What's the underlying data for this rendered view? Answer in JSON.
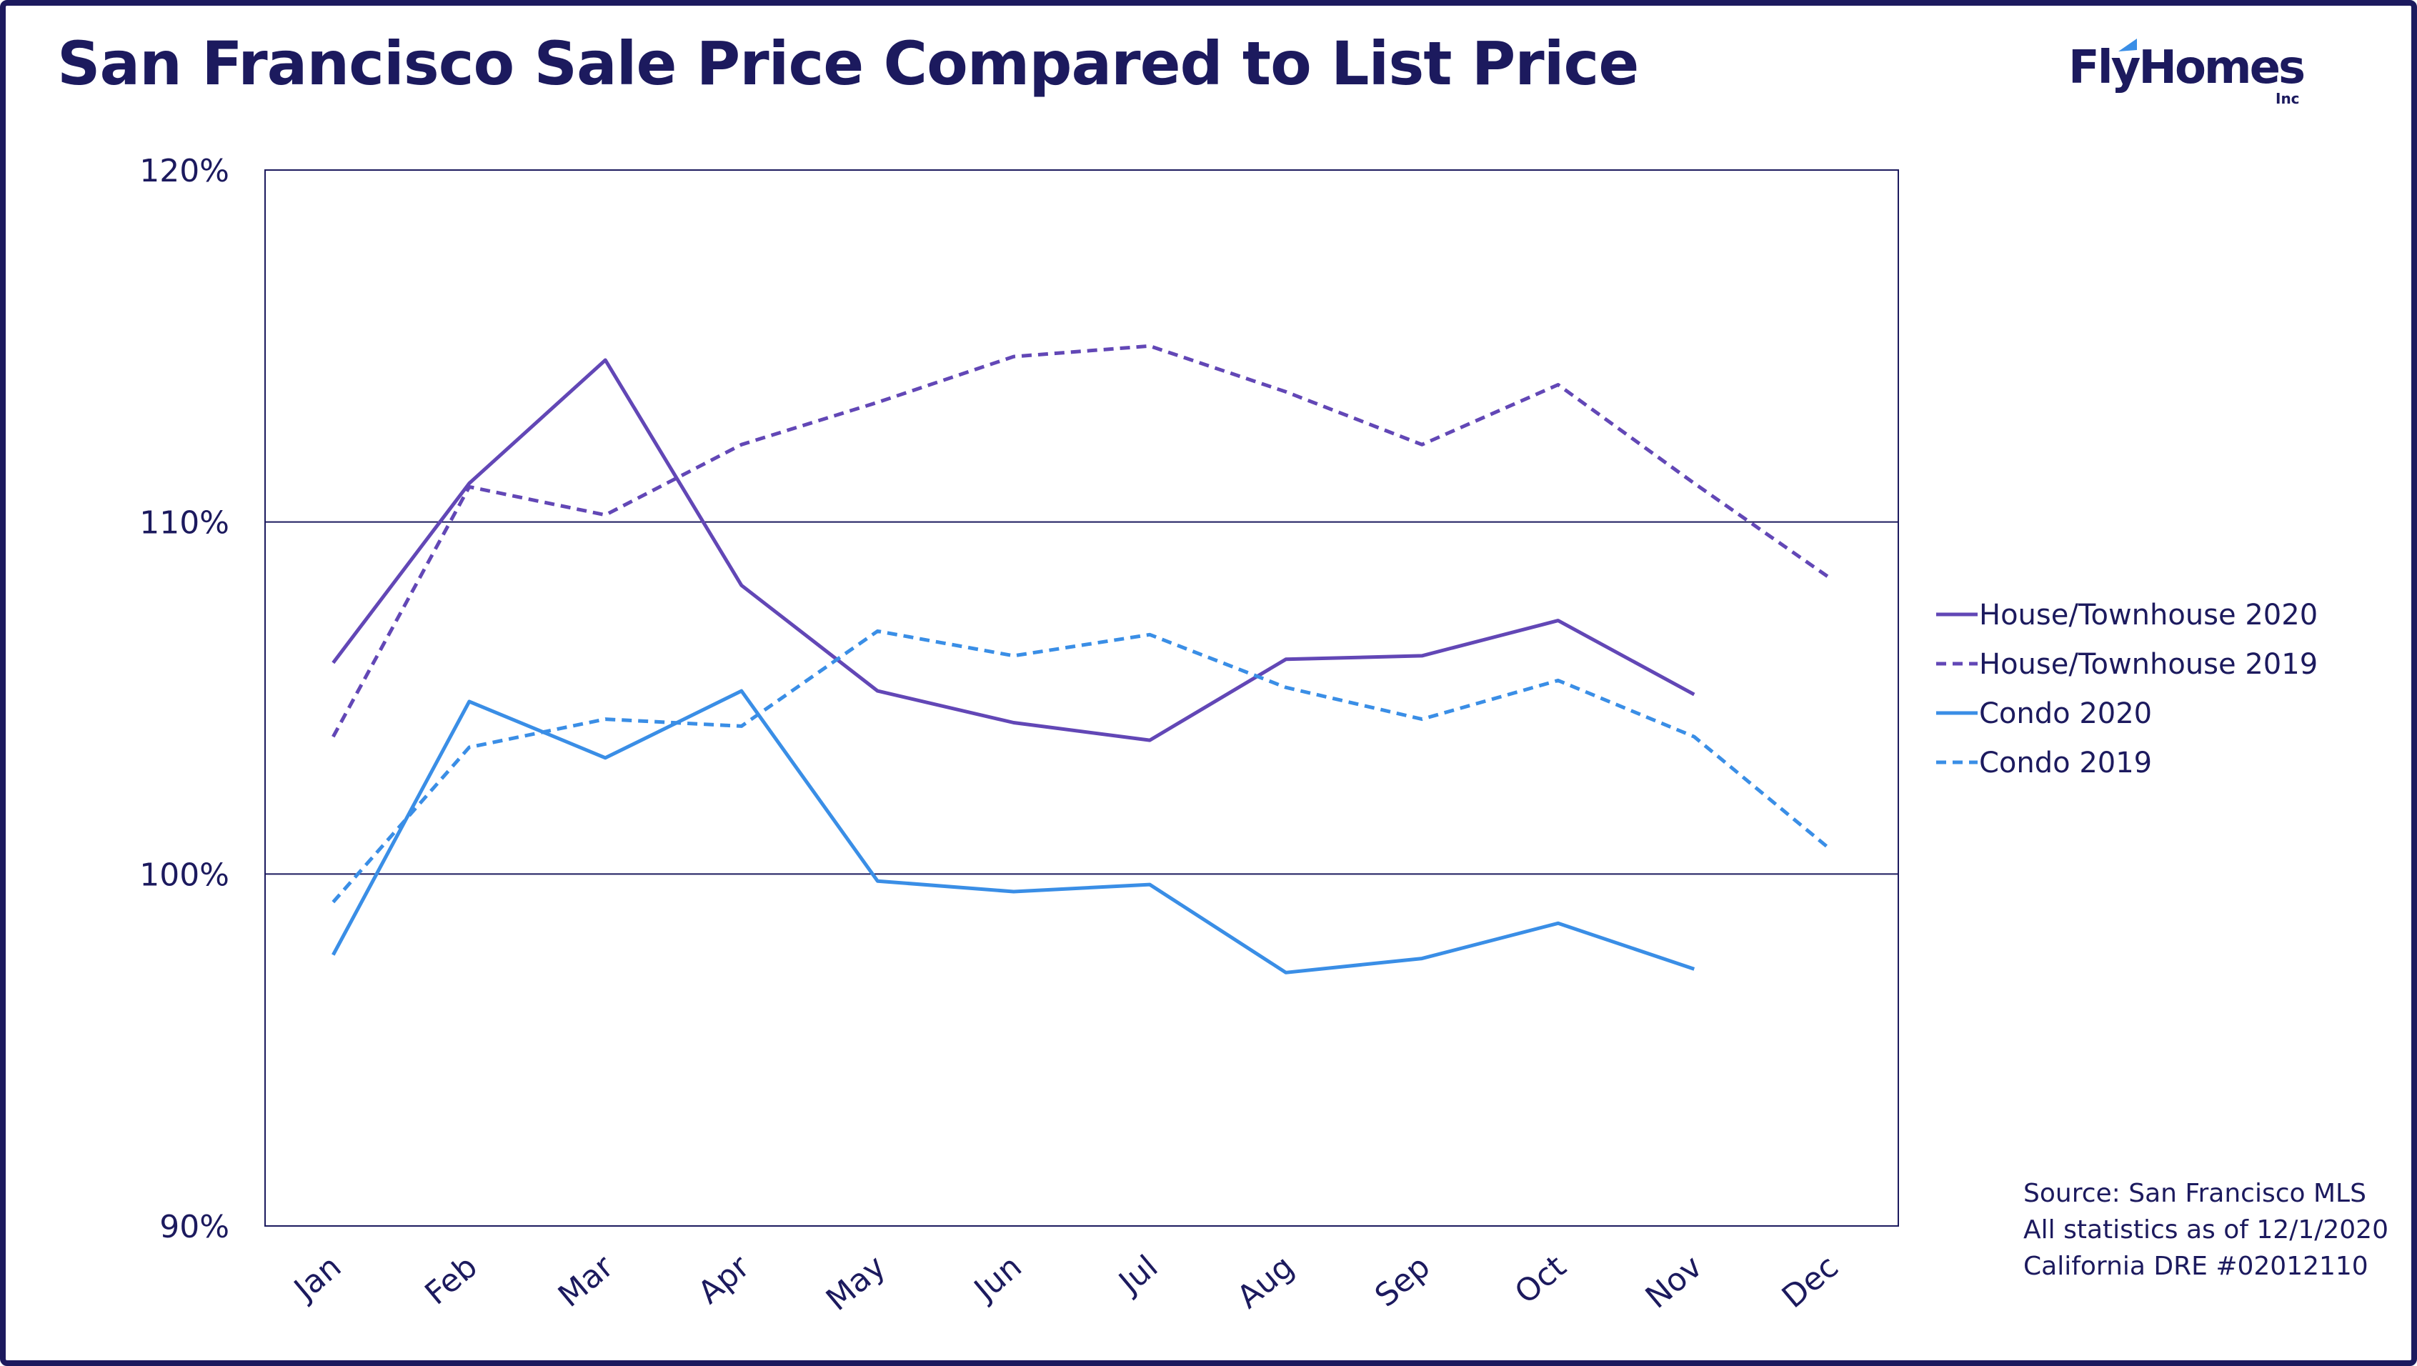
{
  "title": "San Francisco Sale Price Compared to List Price",
  "logo": {
    "name": "FlyHomes",
    "sub": "Inc"
  },
  "source_lines": [
    "Source: San Francisco MLS",
    "All statistics as of 12/1/2020",
    "California DRE #02012110"
  ],
  "colors": {
    "navy": "#1c1a5e",
    "purple": "#6247b6",
    "blue": "#3a8ee6"
  },
  "chart_data": {
    "type": "line",
    "title": "San Francisco Sale Price Compared to List Price",
    "categories": [
      "Jan",
      "Feb",
      "Mar",
      "Apr",
      "May",
      "Jun",
      "Jul",
      "Aug",
      "Sep",
      "Oct",
      "Nov",
      "Dec"
    ],
    "ylim": [
      90,
      120
    ],
    "yticks": [
      {
        "value": 90,
        "label": "90%"
      },
      {
        "value": 100,
        "label": "100%"
      },
      {
        "value": 110,
        "label": "110%"
      },
      {
        "value": 120,
        "label": "120%"
      }
    ],
    "grid": "horizontal",
    "legend": "right",
    "series": [
      {
        "name": "House/Townhouse 2020",
        "color": "#6247b6",
        "dashed": false,
        "values": [
          106.0,
          111.1,
          114.6,
          108.2,
          105.2,
          104.3,
          103.8,
          106.1,
          106.2,
          107.2,
          105.1,
          null
        ]
      },
      {
        "name": "House/Townhouse 2019",
        "color": "#6247b6",
        "dashed": true,
        "values": [
          103.9,
          111.0,
          110.2,
          112.2,
          113.4,
          114.7,
          115.0,
          113.7,
          112.2,
          113.9,
          111.1,
          108.4
        ]
      },
      {
        "name": "Condo 2020",
        "color": "#3a8ee6",
        "dashed": false,
        "values": [
          97.7,
          104.9,
          103.3,
          105.2,
          99.8,
          99.5,
          99.7,
          97.2,
          97.6,
          98.6,
          97.3,
          null
        ]
      },
      {
        "name": "Condo 2019",
        "color": "#3a8ee6",
        "dashed": true,
        "values": [
          99.2,
          103.6,
          104.4,
          104.2,
          106.9,
          106.2,
          106.8,
          105.3,
          104.4,
          105.5,
          103.9,
          100.7
        ]
      }
    ]
  }
}
